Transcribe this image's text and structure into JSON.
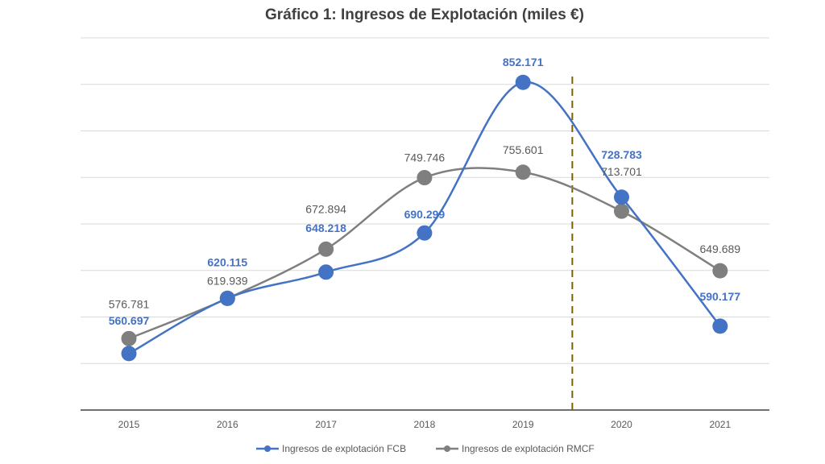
{
  "chart_data": {
    "type": "line",
    "title": "Gráfico 1: Ingresos de Explotación (miles €)",
    "xlabel": "",
    "ylabel": "",
    "categories": [
      "2015",
      "2016",
      "2017",
      "2018",
      "2019",
      "2020",
      "2021"
    ],
    "series": [
      {
        "name": "Ingresos de explotación FCB",
        "color": "#4472c4",
        "values": [
          560.697,
          620.115,
          648.218,
          690.299,
          852.171,
          728.783,
          590.177
        ],
        "labels": [
          "560.697",
          "620.115",
          "648.218",
          "690.299",
          "852.171",
          "728.783",
          "590.177"
        ]
      },
      {
        "name": "Ingresos de explotación RMCF",
        "color": "#7f7f7f",
        "values": [
          576.781,
          619.939,
          672.894,
          749.746,
          755.601,
          713.701,
          649.689
        ],
        "labels": [
          "576.781",
          "619.939",
          "672.894",
          "749.746",
          "755.601",
          "713.701",
          "649.689"
        ]
      }
    ],
    "ylim": [
      500,
      900
    ],
    "y_axis_visible": false,
    "grid": true,
    "smooth_lines": true,
    "legend_position": "bottom",
    "annotations": [
      {
        "type": "vertical-dashed-line",
        "between": [
          "2019",
          "2020"
        ],
        "color": "#7f6000"
      }
    ]
  }
}
